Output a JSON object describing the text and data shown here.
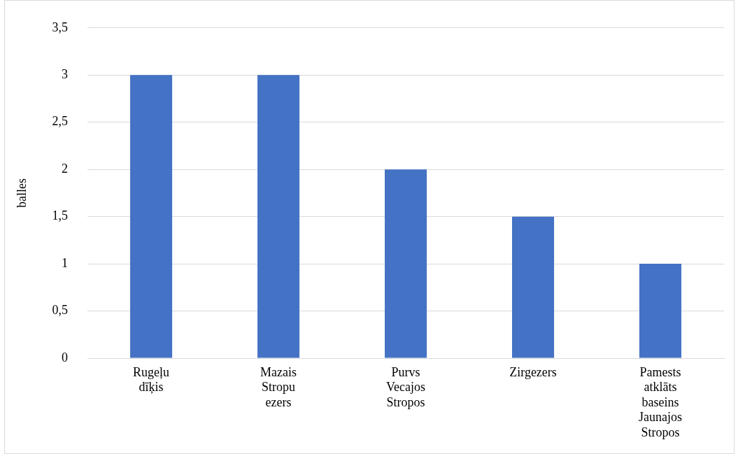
{
  "chart_data": {
    "type": "bar",
    "ylabel": "balles",
    "categories": [
      "Rugeļu dīķis",
      "Mazais Stropu ezers",
      "Purvs Vecajos Stropos",
      "Zirgezers",
      "Pamests atklāts baseins Jaunajos Stropos"
    ],
    "values": [
      3,
      3,
      2,
      1.5,
      1
    ],
    "color": "#4472c4",
    "ylim": [
      0,
      3.5
    ],
    "yticks": [
      0,
      {
        "value": 0.5,
        "label": "0,5"
      },
      1,
      {
        "value": 1.5,
        "label": "1,5"
      },
      2,
      {
        "value": 2.5,
        "label": "2,5"
      },
      3,
      {
        "value": 3.5,
        "label": "3,5"
      }
    ],
    "grid": "y"
  }
}
